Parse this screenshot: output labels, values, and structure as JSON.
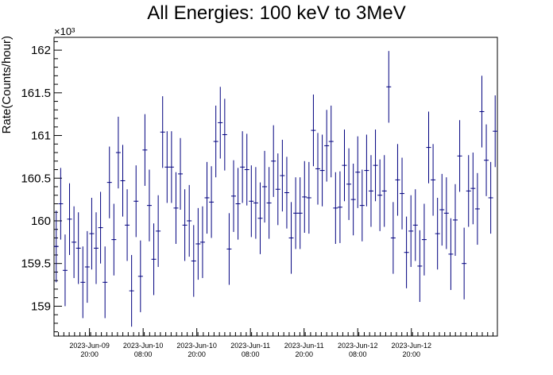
{
  "chart_data": {
    "type": "scatter",
    "title": "All Energies:  100 keV to 3MeV",
    "ylabel": "Rate(Counts/hour)",
    "xlabel": "",
    "y_multiplier": "×10³",
    "ylim": [
      158.65,
      162.15
    ],
    "y_ticks": [
      159,
      159.5,
      160,
      160.5,
      161,
      161.5,
      162
    ],
    "y_tick_labels": [
      "159",
      "159.5",
      "160",
      "160.5",
      "161",
      "161.5",
      "162"
    ],
    "x_ticks": [
      {
        "date": "2023-Jun-09",
        "time": "20:00"
      },
      {
        "date": "2023-Jun-10",
        "time": "08:00"
      },
      {
        "date": "2023-Jun-10",
        "time": "20:00"
      },
      {
        "date": "2023-Jun-11",
        "time": "08:00"
      },
      {
        "date": "2023-Jun-11",
        "time": "20:00"
      },
      {
        "date": "2023-Jun-12",
        "time": "08:00"
      },
      {
        "date": "2023-Jun-12",
        "time": "20:00"
      }
    ],
    "grid": false,
    "series": [
      {
        "color": "#00007f",
        "y_error": 0.42,
        "values": [
          159.7,
          160.2,
          159.42,
          160.02,
          159.75,
          159.68,
          159.28,
          159.46,
          159.85,
          159.68,
          159.92,
          159.28,
          160.45,
          159.78,
          160.8,
          160.47,
          159.95,
          159.18,
          160.23,
          159.35,
          160.83,
          160.18,
          159.55,
          159.88,
          161.04,
          160.63,
          160.63,
          160.15,
          160.55,
          159.95,
          160.0,
          159.53,
          159.73,
          159.75,
          160.27,
          160.22,
          160.93,
          161.15,
          161.01,
          159.67,
          160.29,
          160.2,
          160.63,
          160.6,
          160.23,
          160.21,
          160.03,
          160.4,
          160.21,
          160.7,
          160.37,
          160.53,
          160.33,
          159.8,
          160.09,
          160.09,
          160.28,
          160.27,
          161.06,
          160.61,
          160.59,
          160.88,
          160.93,
          160.15,
          160.16,
          160.65,
          160.43,
          160.25,
          160.57,
          160.18,
          160.59,
          160.35,
          160.65,
          160.3,
          160.35,
          161.57,
          159.8,
          160.48,
          160.32,
          159.63,
          159.88,
          159.95,
          159.47,
          159.78,
          160.86,
          160.48,
          159.85,
          160.13,
          160.09,
          159.61,
          160.01,
          160.76,
          159.5,
          160.35,
          160.38,
          160.14,
          161.28,
          160.71,
          160.27,
          161.05
        ]
      }
    ]
  }
}
